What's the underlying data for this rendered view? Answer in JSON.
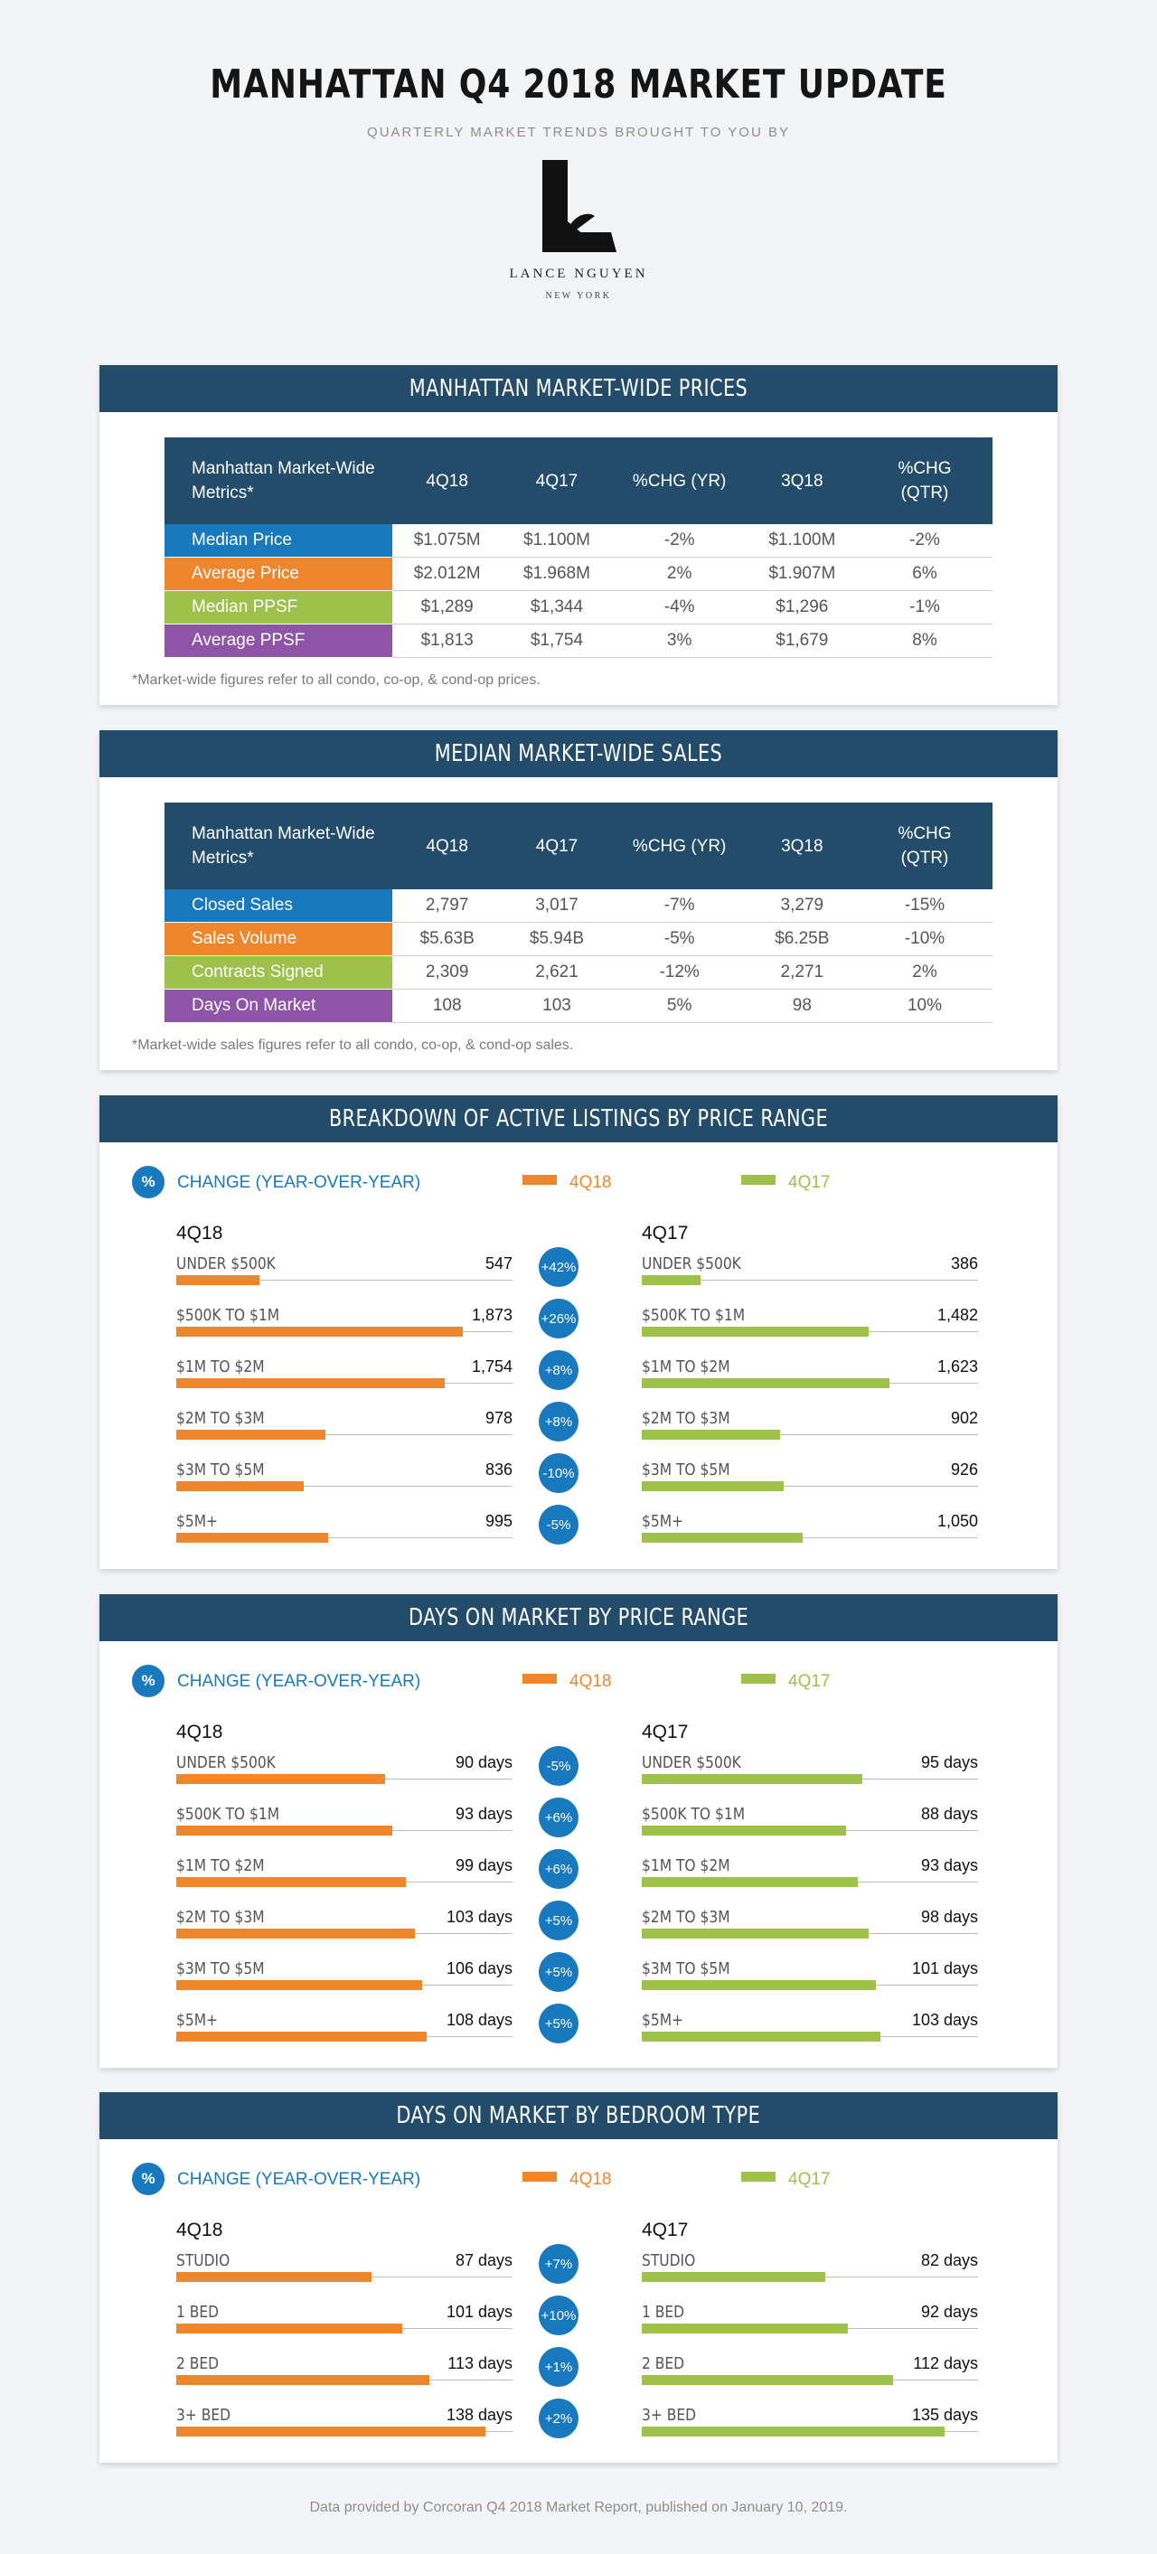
{
  "header": {
    "title": "MANHATTAN Q4 2018 MARKET UPDATE",
    "subtitle": "QUARTERLY MARKET TRENDS BROUGHT TO YOU BY",
    "logo_name": "LANCE NGUYEN",
    "logo_sub": "NEW YORK"
  },
  "colors": {
    "navy": "#234c6b",
    "blue": "#1879be",
    "orange": "#f0862b",
    "green": "#9dc14a",
    "purple": "#8e54a8"
  },
  "legend": {
    "change_label": "CHANGE (YEAR-OVER-YEAR)",
    "pct_symbol": "%",
    "series_a": "4Q18",
    "series_b": "4Q17"
  },
  "prices": {
    "title": "MANHATTAN MARKET-WIDE PRICES",
    "headers": [
      "Manhattan Market-Wide Metrics*",
      "4Q18",
      "4Q17",
      "%CHG (YR)",
      "3Q18",
      "%CHG (QTR)"
    ],
    "rows": [
      {
        "label": "Median Price",
        "color": "#1879be",
        "cells": [
          "$1.075M",
          "$1.100M",
          "-2%",
          "$1.100M",
          "-2%"
        ]
      },
      {
        "label": "Average Price",
        "color": "#f0862b",
        "cells": [
          "$2.012M",
          "$1.968M",
          "2%",
          "$1.907M",
          "6%"
        ]
      },
      {
        "label": "Median PPSF",
        "color": "#9dc14a",
        "cells": [
          "$1,289",
          "$1,344",
          "-4%",
          "$1,296",
          "-1%"
        ]
      },
      {
        "label": "Average PPSF",
        "color": "#8e54a8",
        "cells": [
          "$1,813",
          "$1,754",
          "3%",
          "$1,679",
          "8%"
        ]
      }
    ],
    "footnote": "*Market-wide figures refer to all condo, co-op, & cond-op prices."
  },
  "sales": {
    "title": "MEDIAN MARKET-WIDE SALES",
    "headers": [
      "Manhattan Market-Wide Metrics*",
      "4Q18",
      "4Q17",
      "%CHG (YR)",
      "3Q18",
      "%CHG (QTR)"
    ],
    "rows": [
      {
        "label": "Closed Sales",
        "color": "#1879be",
        "cells": [
          "2,797",
          "3,017",
          "-7%",
          "3,279",
          "-15%"
        ]
      },
      {
        "label": "Sales Volume",
        "color": "#f0862b",
        "cells": [
          "$5.63B",
          "$5.94B",
          "-5%",
          "$6.25B",
          "-10%"
        ]
      },
      {
        "label": "Contracts Signed",
        "color": "#9dc14a",
        "cells": [
          "2,309",
          "2,621",
          "-12%",
          "2,271",
          "2%"
        ]
      },
      {
        "label": "Days On Market",
        "color": "#8e54a8",
        "cells": [
          "108",
          "103",
          "5%",
          "98",
          "10%"
        ]
      }
    ],
    "footnote": "*Market-wide sales figures refer to all condo, co-op, & cond-op sales."
  },
  "chart_data": [
    {
      "type": "bar",
      "title": "BREAKDOWN OF ACTIVE LISTINGS BY PRICE RANGE",
      "categories": [
        "UNDER $500K",
        "$500K TO $1M",
        "$1M TO $2M",
        "$2M TO $3M",
        "$3M TO $5M",
        "$5M+"
      ],
      "series": [
        {
          "name": "4Q18",
          "values": [
            547,
            1873,
            1754,
            978,
            836,
            995
          ],
          "labels": [
            "547",
            "1,873",
            "1,754",
            "978",
            "836",
            "995"
          ]
        },
        {
          "name": "4Q17",
          "values": [
            386,
            1482,
            1623,
            902,
            926,
            1050
          ],
          "labels": [
            "386",
            "1,482",
            "1,623",
            "902",
            "926",
            "1,050"
          ]
        }
      ],
      "changes": [
        "+42%",
        "+26%",
        "+8%",
        "+8%",
        "-10%",
        "-5%"
      ],
      "xlim": [
        0,
        2200
      ]
    },
    {
      "type": "bar",
      "title": "DAYS ON MARKET BY PRICE RANGE",
      "categories": [
        "UNDER $500K",
        "$500K TO $1M",
        "$1M TO $2M",
        "$2M TO $3M",
        "$3M TO $5M",
        "$5M+"
      ],
      "series": [
        {
          "name": "4Q18",
          "values": [
            90,
            93,
            99,
            103,
            106,
            108
          ],
          "labels": [
            "90 days",
            "93 days",
            "99 days",
            "103 days",
            "106 days",
            "108 days"
          ]
        },
        {
          "name": "4Q17",
          "values": [
            95,
            88,
            93,
            98,
            101,
            103
          ],
          "labels": [
            "95 days",
            "88 days",
            "93 days",
            "98 days",
            "101 days",
            "103 days"
          ]
        }
      ],
      "changes": [
        "-5%",
        "+6%",
        "+6%",
        "+5%",
        "+5%",
        "+5%"
      ],
      "xlim": [
        0,
        145
      ]
    },
    {
      "type": "bar",
      "title": "DAYS ON MARKET BY BEDROOM TYPE",
      "categories": [
        "STUDIO",
        "1 BED",
        "2 BED",
        "3+ BED"
      ],
      "series": [
        {
          "name": "4Q18",
          "values": [
            87,
            101,
            113,
            138
          ],
          "labels": [
            "87 days",
            "101 days",
            "113 days",
            "138 days"
          ]
        },
        {
          "name": "4Q17",
          "values": [
            82,
            92,
            112,
            135
          ],
          "labels": [
            "82 days",
            "92 days",
            "112 days",
            "135 days"
          ]
        }
      ],
      "changes": [
        "+7%",
        "+10%",
        "+1%",
        "+2%"
      ],
      "xlim": [
        0,
        150
      ]
    }
  ],
  "source": "Data provided by Corcoran Q4 2018 Market Report, published on January 10, 2019."
}
